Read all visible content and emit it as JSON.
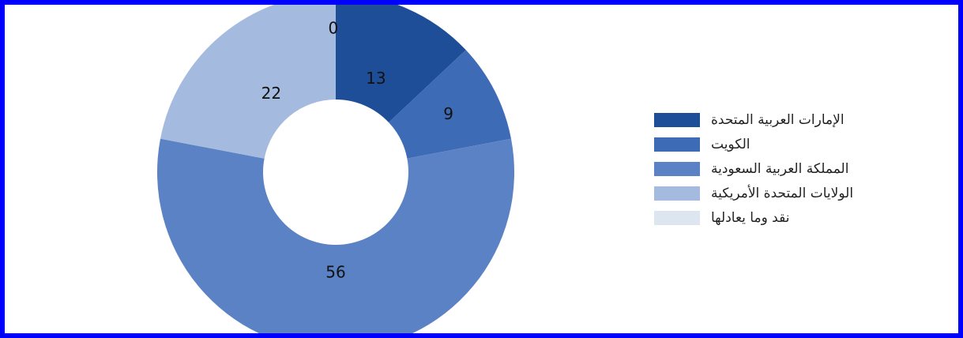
{
  "chart_data": {
    "type": "pie",
    "title": "",
    "categories": [
      "الإمارات العربية المتحدة",
      "الكويت",
      "المملكة العربية السعودية",
      "الولايات المتحدة الأمريكية",
      "نقد وما يعادلها"
    ],
    "values": [
      13,
      9,
      56,
      22,
      0
    ],
    "data_labels": [
      "13",
      "9",
      "56",
      "22",
      "0"
    ],
    "colors": [
      "#1f4e99",
      "#3e6bb6",
      "#5a82c4",
      "#a4bade",
      "#dde5f1"
    ],
    "donut": true,
    "legend_position": "right"
  }
}
